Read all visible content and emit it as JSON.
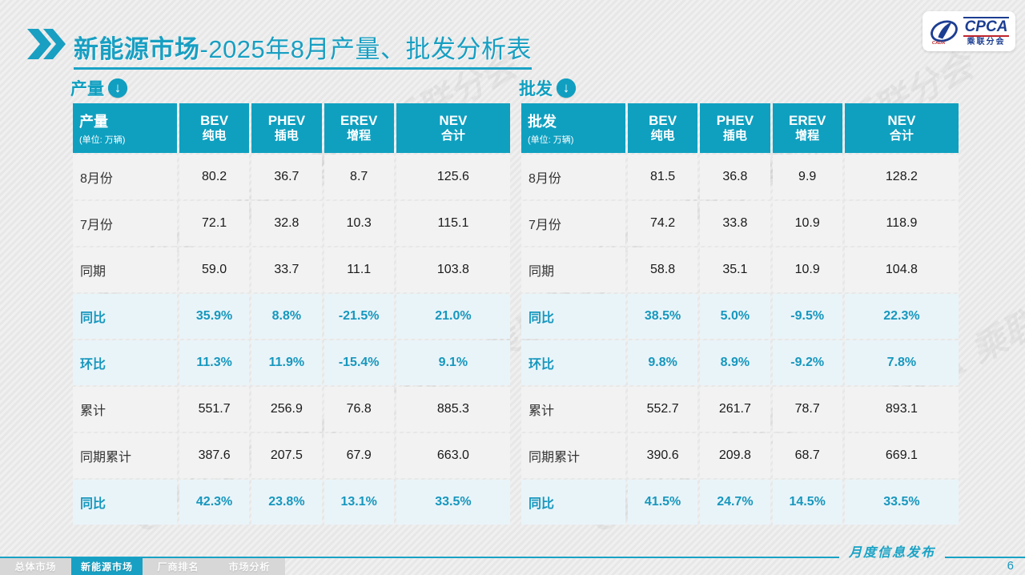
{
  "page": {
    "title_bold": "新能源市场",
    "title_rest": "-2025年8月产量、批发分析表",
    "footer_note": "月度信息发布",
    "page_number": "6"
  },
  "logo": {
    "name": "CPCA",
    "cn_name": "乘联分会"
  },
  "watermark": {
    "text": "CPCA 乘联分会"
  },
  "icons": {
    "down_arrow": "↓"
  },
  "nav": {
    "tabs": [
      {
        "label": "总体市场",
        "active": false
      },
      {
        "label": "新能源市场",
        "active": true
      },
      {
        "label": "厂商排名",
        "active": false
      },
      {
        "label": "市场分析",
        "active": false
      }
    ]
  },
  "tables": [
    {
      "section_label": "产量",
      "corner_title": "产量",
      "corner_unit": "(单位: 万辆)",
      "columns": [
        {
          "en": "BEV",
          "cn": "纯电"
        },
        {
          "en": "PHEV",
          "cn": "插电"
        },
        {
          "en": "EREV",
          "cn": "增程"
        },
        {
          "en": "NEV",
          "cn": "合计"
        }
      ],
      "rows": [
        {
          "label": "8月份",
          "type": "normal",
          "values": [
            "80.2",
            "36.7",
            "8.7",
            "125.6"
          ]
        },
        {
          "label": "7月份",
          "type": "normal",
          "values": [
            "72.1",
            "32.8",
            "10.3",
            "115.1"
          ]
        },
        {
          "label": "同期",
          "type": "normal",
          "values": [
            "59.0",
            "33.7",
            "11.1",
            "103.8"
          ]
        },
        {
          "label": "同比",
          "type": "percent",
          "values": [
            "35.9%",
            "8.8%",
            "-21.5%",
            "21.0%"
          ]
        },
        {
          "label": "环比",
          "type": "percent",
          "values": [
            "11.3%",
            "11.9%",
            "-15.4%",
            "9.1%"
          ]
        },
        {
          "label": "累计",
          "type": "normal",
          "values": [
            "551.7",
            "256.9",
            "76.8",
            "885.3"
          ]
        },
        {
          "label": "同期累计",
          "type": "normal",
          "values": [
            "387.6",
            "207.5",
            "67.9",
            "663.0"
          ]
        },
        {
          "label": "同比",
          "type": "percent",
          "values": [
            "42.3%",
            "23.8%",
            "13.1%",
            "33.5%"
          ]
        }
      ]
    },
    {
      "section_label": "批发",
      "corner_title": "批发",
      "corner_unit": "(单位: 万辆)",
      "columns": [
        {
          "en": "BEV",
          "cn": "纯电"
        },
        {
          "en": "PHEV",
          "cn": "插电"
        },
        {
          "en": "EREV",
          "cn": "增程"
        },
        {
          "en": "NEV",
          "cn": "合计"
        }
      ],
      "rows": [
        {
          "label": "8月份",
          "type": "normal",
          "values": [
            "81.5",
            "36.8",
            "9.9",
            "128.2"
          ]
        },
        {
          "label": "7月份",
          "type": "normal",
          "values": [
            "74.2",
            "33.8",
            "10.9",
            "118.9"
          ]
        },
        {
          "label": "同期",
          "type": "normal",
          "values": [
            "58.8",
            "35.1",
            "10.9",
            "104.8"
          ]
        },
        {
          "label": "同比",
          "type": "percent",
          "values": [
            "38.5%",
            "5.0%",
            "-9.5%",
            "22.3%"
          ]
        },
        {
          "label": "环比",
          "type": "percent",
          "values": [
            "9.8%",
            "8.9%",
            "-9.2%",
            "7.8%"
          ]
        },
        {
          "label": "累计",
          "type": "normal",
          "values": [
            "552.7",
            "261.7",
            "78.7",
            "893.1"
          ]
        },
        {
          "label": "同期累计",
          "type": "normal",
          "values": [
            "390.6",
            "209.8",
            "68.7",
            "669.1"
          ]
        },
        {
          "label": "同比",
          "type": "percent",
          "values": [
            "41.5%",
            "24.7%",
            "14.5%",
            "33.5%"
          ]
        }
      ]
    }
  ]
}
